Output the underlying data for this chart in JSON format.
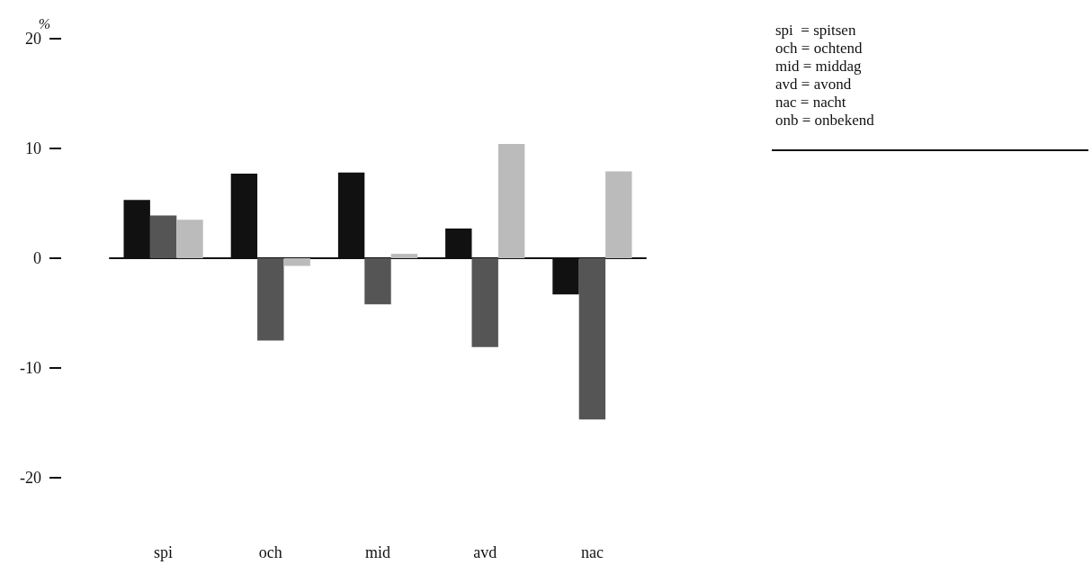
{
  "chart_data": {
    "type": "bar",
    "ylabel": "%",
    "categories": [
      "spi",
      "och",
      "mid",
      "avd",
      "nac"
    ],
    "series": [
      {
        "color": "#111111",
        "values": [
          5.3,
          7.7,
          7.8,
          2.7,
          -3.3
        ]
      },
      {
        "color": "#555555",
        "values": [
          3.9,
          -7.5,
          -4.2,
          -8.1,
          -14.7
        ]
      },
      {
        "color": "#bbbbbb",
        "values": [
          3.5,
          -0.7,
          0.4,
          10.4,
          7.9
        ]
      }
    ],
    "ylim": [
      -20,
      20
    ],
    "yticks": [
      -20,
      -10,
      0,
      10,
      20
    ],
    "annotations": [
      "spi  = spitsen",
      "och = ochtend",
      "mid = middag",
      "avd = avond",
      "nac = nacht",
      "onb = onbekend"
    ]
  }
}
